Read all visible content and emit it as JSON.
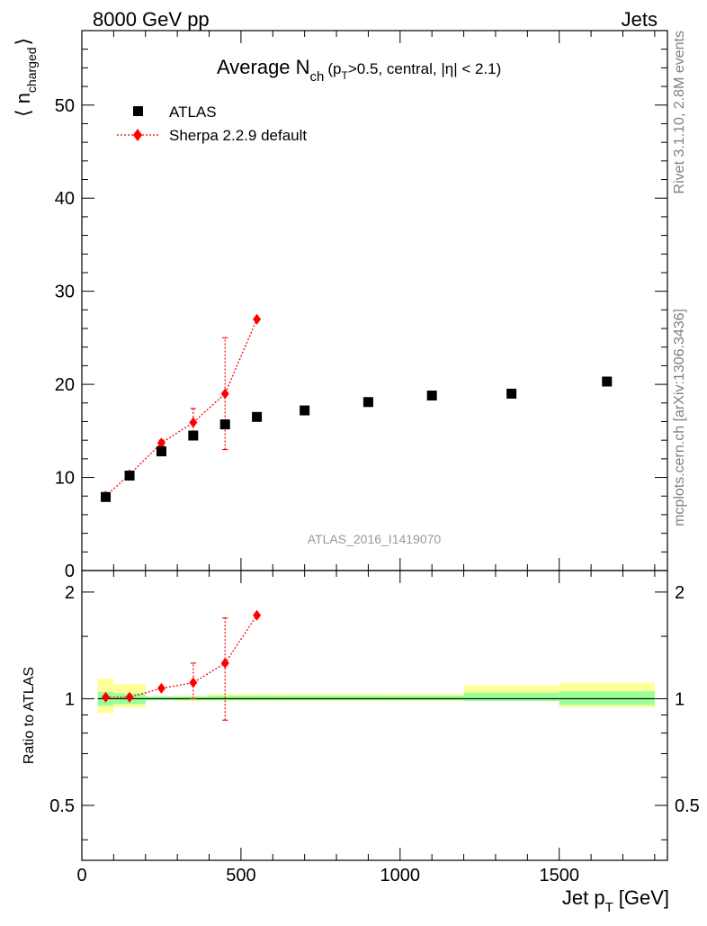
{
  "header": {
    "energy": "8000 GeV pp",
    "category": "Jets"
  },
  "side_labels": {
    "rivet": "Rivet 3.1.10,  2.8M events",
    "mcplots": "mcplots.cern.ch [arXiv:1306.3436]"
  },
  "chart_data": [
    {
      "type": "scatter",
      "title": "Average N",
      "title_sub": "ch",
      "title_detail": "(p",
      "title_detail_sub": "T",
      "title_detail_rest": ">0.5, central, |η| < 2.1)",
      "ylabel": "⟨ n",
      "ylabel_sub": "charged",
      "ylabel_close": "⟩",
      "analysis_id": "ATLAS_2016_I1419070",
      "xlim": [
        0,
        1840
      ],
      "ylim": [
        0,
        58
      ],
      "yticks": [
        0,
        10,
        20,
        30,
        40,
        50
      ],
      "ytick_labels": [
        "0",
        "10",
        "20",
        "30",
        "40",
        "50"
      ],
      "legend_position": "top-left",
      "series": [
        {
          "name": "ATLAS",
          "color": "#000000",
          "marker": "square",
          "x": [
            75,
            150,
            250,
            350,
            450,
            550,
            700,
            900,
            1100,
            1350,
            1650
          ],
          "y": [
            7.9,
            10.2,
            12.8,
            14.5,
            15.7,
            16.5,
            17.2,
            18.1,
            18.8,
            19.0,
            20.3
          ]
        },
        {
          "name": "Sherpa 2.2.9 default",
          "color": "#ff0000",
          "marker": "diamond",
          "x": [
            75,
            150,
            250,
            350,
            450,
            550
          ],
          "y": [
            8.0,
            10.3,
            13.7,
            15.9,
            19.0,
            27.0
          ],
          "yerr_low": [
            0.1,
            0.2,
            0.3,
            1.0,
            6.0,
            0.0
          ],
          "yerr_high": [
            0.1,
            0.2,
            0.3,
            1.5,
            6.0,
            0.0
          ]
        }
      ]
    },
    {
      "type": "scatter",
      "ylabel": "Ratio to ATLAS",
      "xlabel": "Jet p",
      "xlabel_sub": "T",
      "xlabel_unit": "[GeV]",
      "xlim": [
        0,
        1840
      ],
      "ylim": [
        0.35,
        2.3
      ],
      "log_y": true,
      "xticks": [
        0,
        500,
        1000,
        1500
      ],
      "xtick_labels": [
        "0",
        "500",
        "1000",
        "1500"
      ],
      "yticks": [
        0.5,
        1,
        2
      ],
      "ytick_labels": [
        "0.5",
        "1",
        "2"
      ],
      "reference_line": 1.0,
      "uncertainty_bands": {
        "bin_edges": [
          50,
          100,
          200,
          300,
          400,
          500,
          600,
          800,
          1000,
          1200,
          1500,
          1800
        ],
        "stat_low": [
          0.955,
          0.965,
          0.99,
          0.99,
          0.99,
          0.99,
          0.99,
          0.99,
          0.99,
          0.985,
          0.96
        ],
        "stat_high": [
          1.045,
          1.035,
          1.015,
          1.015,
          1.02,
          1.02,
          1.02,
          1.02,
          1.02,
          1.04,
          1.05
        ],
        "total_low": [
          0.91,
          0.945,
          0.99,
          0.985,
          0.985,
          0.985,
          0.985,
          0.985,
          0.985,
          0.985,
          0.945
        ],
        "total_high": [
          1.14,
          1.1,
          1.015,
          1.02,
          1.03,
          1.03,
          1.03,
          1.03,
          1.03,
          1.09,
          1.11
        ],
        "stat_color": "#99ff99",
        "total_color": "#ffff99"
      },
      "series": [
        {
          "name": "Sherpa 2.2.9 default",
          "color": "#ff0000",
          "marker": "diamond",
          "x": [
            75,
            150,
            250,
            350,
            450,
            550
          ],
          "y": [
            1.01,
            1.01,
            1.07,
            1.11,
            1.26,
            1.72
          ],
          "yerr_low": [
            0.0,
            0.0,
            0.0,
            0.11,
            0.39,
            0.0
          ],
          "yerr_high": [
            0.0,
            0.0,
            0.0,
            0.15,
            0.43,
            0.0
          ]
        }
      ]
    }
  ]
}
